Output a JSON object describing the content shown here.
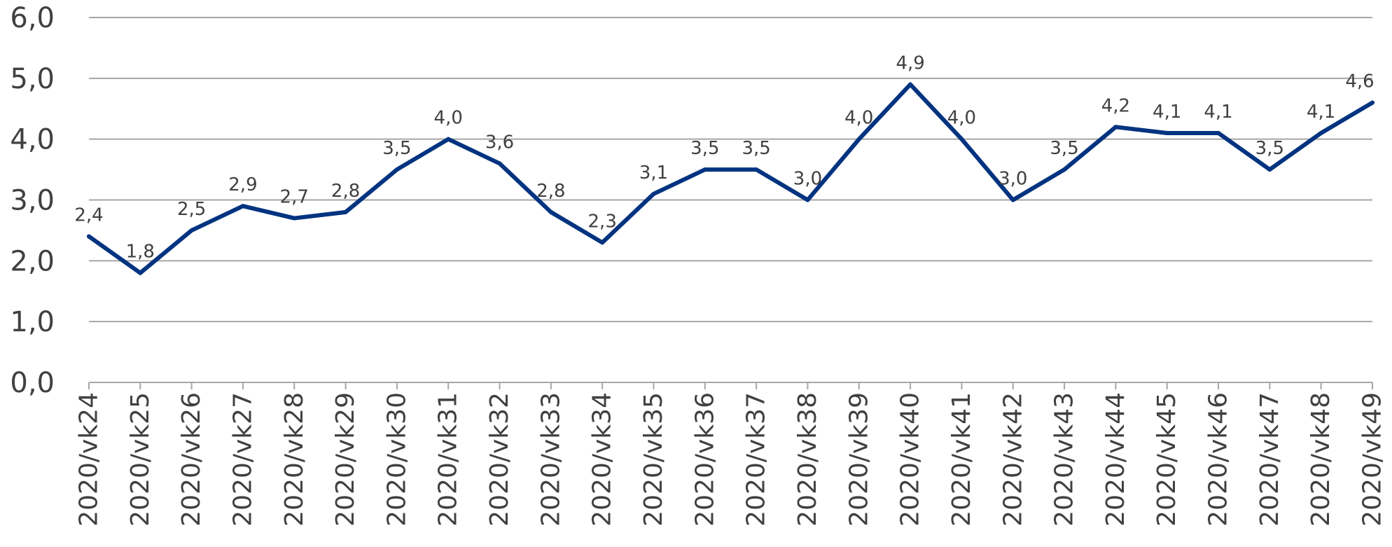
{
  "chart_data": {
    "type": "line",
    "categories": [
      "2020/vk24",
      "2020/vk25",
      "2020/vk26",
      "2020/vk27",
      "2020/vk28",
      "2020/vk29",
      "2020/vk30",
      "2020/vk31",
      "2020/vk32",
      "2020/vk33",
      "2020/vk34",
      "2020/vk35",
      "2020/vk36",
      "2020/vk37",
      "2020/vk38",
      "2020/vk39",
      "2020/vk40",
      "2020/vk41",
      "2020/vk42",
      "2020/vk43",
      "2020/vk44",
      "2020/vk45",
      "2020/vk46",
      "2020/vk47",
      "2020/vk48",
      "2020/vk49"
    ],
    "values": [
      2.4,
      1.8,
      2.5,
      2.9,
      2.7,
      2.8,
      3.5,
      4.0,
      3.6,
      2.8,
      2.3,
      3.1,
      3.5,
      3.5,
      3.0,
      4.0,
      4.9,
      4.0,
      3.0,
      3.5,
      4.2,
      4.1,
      4.1,
      3.5,
      4.1,
      4.6
    ],
    "data_labels": [
      "2,4",
      "1,8",
      "2,5",
      "2,9",
      "2,7",
      "2,8",
      "3,5",
      "4,0",
      "3,6",
      "2,8",
      "2,3",
      "3,1",
      "3,5",
      "3,5",
      "3,0",
      "4,0",
      "4,9",
      "4,0",
      "3,0",
      "3,5",
      "4,2",
      "4,1",
      "4,1",
      "3,5",
      "4,1",
      "4,6"
    ],
    "y_ticks": [
      {
        "value": 0,
        "label": "0,0"
      },
      {
        "value": 1,
        "label": "1,0"
      },
      {
        "value": 2,
        "label": "2,0"
      },
      {
        "value": 3,
        "label": "3,0"
      },
      {
        "value": 4,
        "label": "4,0"
      },
      {
        "value": 5,
        "label": "5,0"
      },
      {
        "value": 6,
        "label": "6,0"
      }
    ],
    "ylim": [
      0,
      6
    ],
    "grid": true,
    "legend": "none",
    "line_color": "#003380",
    "grid_color": "#a6a6a6",
    "text_color": "#404040"
  }
}
